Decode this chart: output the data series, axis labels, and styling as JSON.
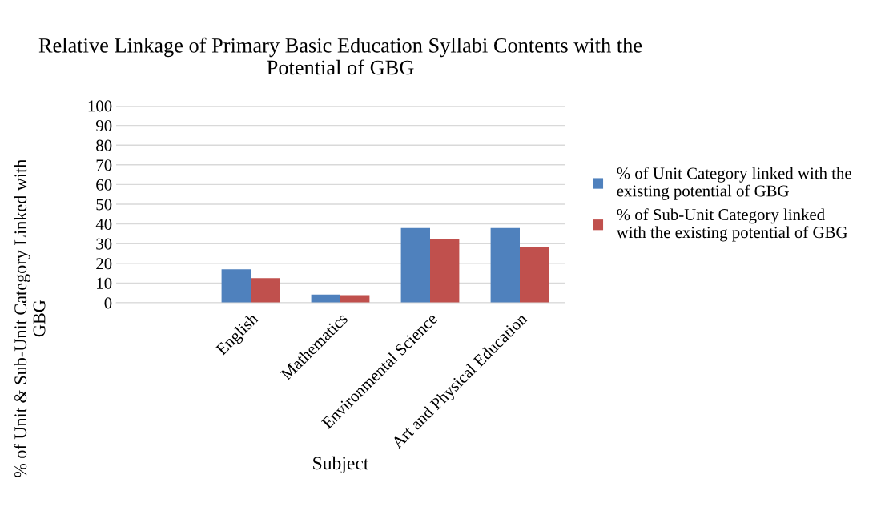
{
  "chart_data": {
    "type": "bar",
    "title": "Relative Linkage of Primary Basic Education Syllabi Contents with the\nPotential of GBG",
    "xlabel": "Subject",
    "ylabel": "% of Unit & Sub-Unit Category Linked with\nGBG",
    "categories": [
      null,
      "English",
      "Mathematics",
      "Environmental Science",
      "Art and Physical Education"
    ],
    "series": [
      {
        "name": "% of Unit Category linked with the\nexisting potential of GBG",
        "color": "#4f81bd",
        "values": [
          null,
          17,
          4.2,
          37.9,
          37.9
        ]
      },
      {
        "name": "% of Sub-Unit Category linked\nwith the existing potential of GBG",
        "color": "#c0504d",
        "values": [
          null,
          12.5,
          3.9,
          32.5,
          28.5
        ]
      }
    ],
    "ylim": [
      0,
      100
    ],
    "yticks": [
      0,
      10,
      20,
      30,
      40,
      50,
      60,
      70,
      80,
      90,
      100
    ],
    "grid": "y",
    "legend": "right"
  }
}
